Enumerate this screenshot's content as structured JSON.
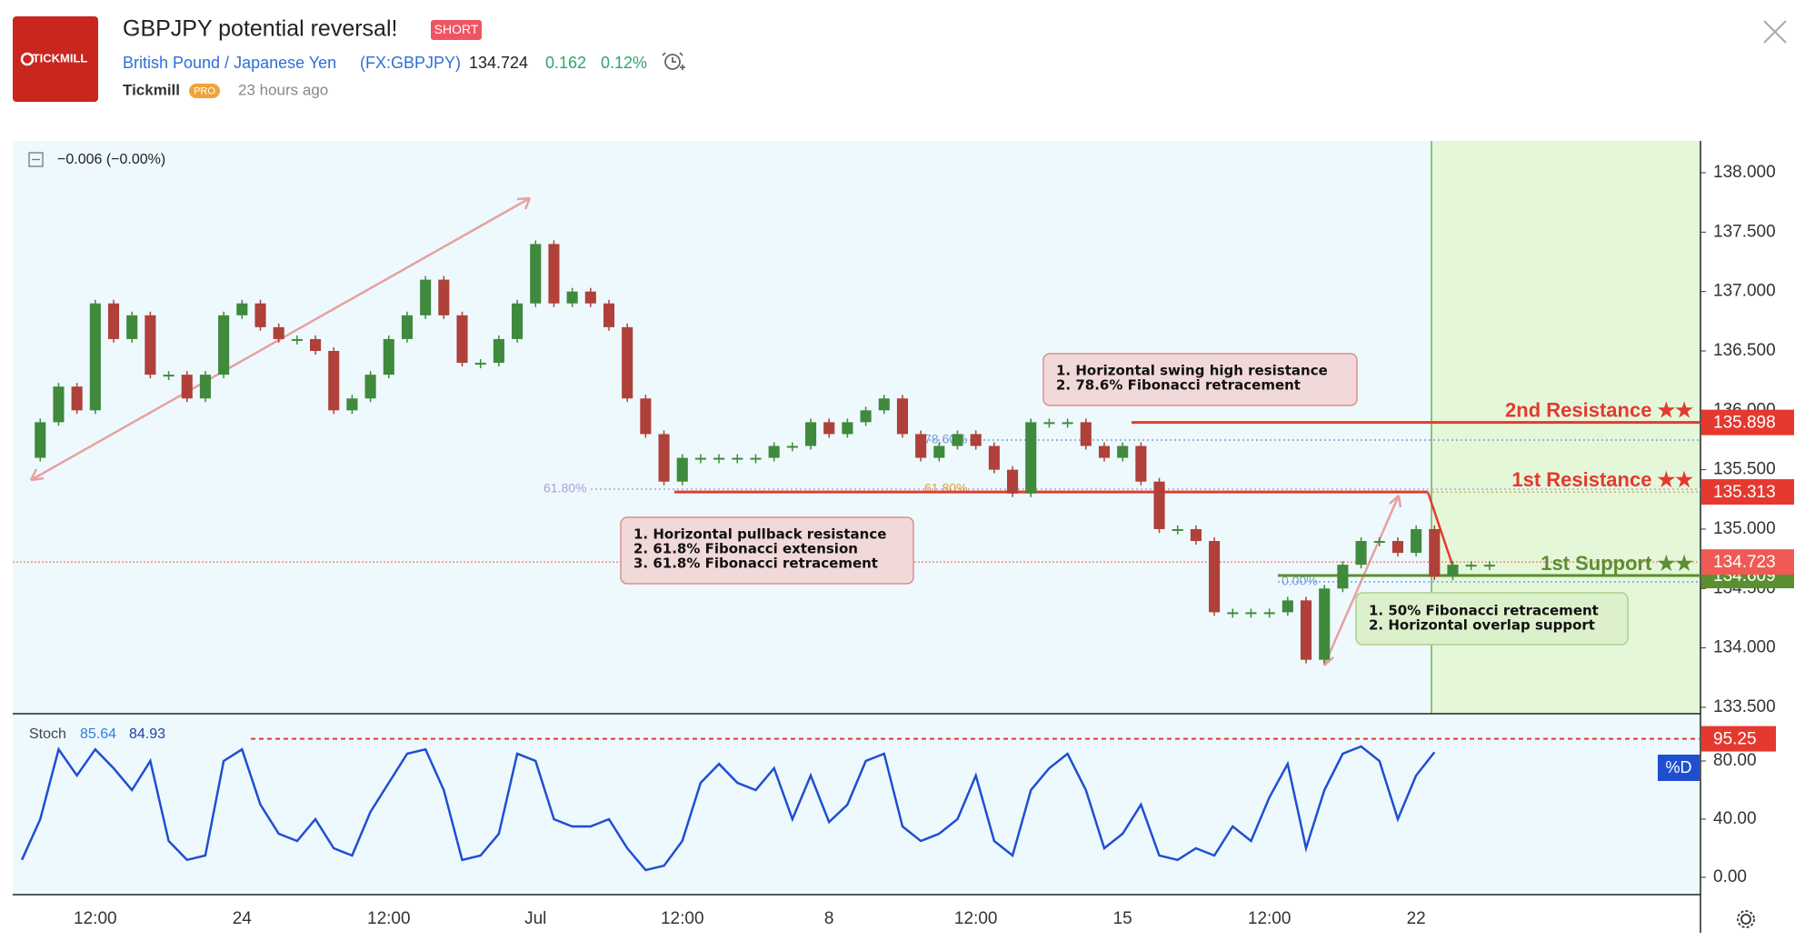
{
  "header": {
    "logo": "TICKMILL",
    "title": "GBPJPY potential reversal!",
    "badge": "SHORT",
    "symbol_name": "British Pound / Japanese Yen",
    "symbol_code": "(FX:GBPJPY)",
    "price": "134.724",
    "change": "0.162",
    "change_pct": "0.12%",
    "author": "Tickmill",
    "author_badge": "PRO",
    "time": "23 hours ago"
  },
  "chart_data": [
    {
      "type": "candlestick",
      "legend": "−0.006 (−0.00%)",
      "colors": {
        "up": "#3f8a3c",
        "down": "#b0403a"
      },
      "values": [
        135.6,
        135.9,
        136.2,
        136.0,
        136.9,
        136.6,
        136.8,
        136.3,
        136.3,
        136.1,
        136.3,
        136.8,
        136.9,
        136.7,
        136.6,
        136.6,
        136.5,
        136.0,
        136.1,
        136.3,
        136.6,
        136.8,
        137.1,
        136.8,
        136.4,
        136.4,
        136.6,
        136.9,
        137.4,
        136.9,
        137.0,
        136.9,
        136.7,
        136.1,
        135.8,
        135.4,
        135.6,
        135.6,
        135.6,
        135.6,
        135.6,
        135.7,
        135.7,
        135.9,
        135.8,
        135.9,
        136.0,
        136.1,
        135.8,
        135.6,
        135.7,
        135.8,
        135.7,
        135.5,
        135.3,
        135.9,
        135.9,
        135.9,
        135.7,
        135.6,
        135.7,
        135.4,
        135.0,
        135.0,
        134.9,
        134.3,
        134.3,
        134.3,
        134.3,
        134.4,
        133.9,
        134.5,
        134.7,
        134.9,
        134.9,
        134.8,
        135.0,
        134.6,
        134.7,
        134.7,
        134.7,
        null,
        null,
        null,
        null,
        null,
        null,
        null,
        null,
        null,
        null,
        null
      ],
      "ylim": [
        133.446,
        138.268
      ],
      "yticks": [
        {
          "value": 133.5,
          "label": "133.500"
        },
        {
          "value": 134,
          "label": "134.000"
        },
        {
          "value": 134.5,
          "label": "134.500"
        },
        {
          "value": 135,
          "label": "135.000"
        },
        {
          "value": 135.5,
          "label": "135.500"
        },
        {
          "value": 136,
          "label": "136.000"
        },
        {
          "value": 136.5,
          "label": "136.500"
        },
        {
          "value": 137,
          "label": "137.000"
        },
        {
          "value": 137.5,
          "label": "137.500"
        },
        {
          "value": 138,
          "label": "138.000"
        }
      ],
      "levels": [
        {
          "name": "2nd Resistance ★★",
          "value": 135.898,
          "color": "#e5392f"
        },
        {
          "name": "1st Resistance ★★",
          "value": 135.313,
          "color": "#e5392f"
        },
        {
          "name": "1st Support ★★",
          "value": 134.609,
          "color": "#5b8f2f"
        }
      ],
      "last_price": {
        "value": 134.723,
        "color": "#ef5a55"
      },
      "fib_labels": [
        "61.80%",
        "78.60%",
        "61.80%",
        "0.00%"
      ],
      "annotations": [
        {
          "lines": [
            "1. Horizontal swing high resistance",
            "2. 78.6% Fibonacci retracement"
          ]
        },
        {
          "lines": [
            "1. Horizontal pullback resistance",
            "2. 61.8% Fibonacci extension",
            "3. 61.8% Fibonacci retracement"
          ]
        },
        {
          "lines": [
            "1. 50% Fibonacci retracement",
            "2. Horizontal overlap support"
          ]
        }
      ]
    },
    {
      "type": "line",
      "name": "Stoch",
      "legend_values": [
        "85.64",
        "84.93"
      ],
      "badge": "%D",
      "color": "#1f4fd1",
      "categories": [
        null,
        null,
        null,
        null,
        "12:00",
        null,
        null,
        null,
        null,
        null,
        null,
        null,
        "24",
        null,
        null,
        null,
        null,
        null,
        null,
        null,
        "12:00",
        null,
        null,
        null,
        null,
        null,
        null,
        null,
        "Jul",
        null,
        null,
        null,
        null,
        null,
        null,
        null,
        "12:00",
        null,
        null,
        null,
        null,
        null,
        null,
        null,
        "8",
        null,
        null,
        null,
        null,
        null,
        null,
        null,
        "12:00",
        null,
        null,
        null,
        null,
        null,
        null,
        null,
        "15",
        null,
        null,
        null,
        null,
        null,
        null,
        null,
        "12:00",
        null,
        null,
        null,
        null,
        null,
        null,
        null,
        "22",
        null,
        null,
        null,
        null,
        null,
        null,
        null,
        null,
        null,
        null,
        null,
        null,
        null,
        null,
        null
      ],
      "values": [
        12,
        40,
        88,
        70,
        88,
        75,
        60,
        80,
        25,
        12,
        15,
        80,
        88,
        50,
        30,
        25,
        40,
        20,
        15,
        45,
        65,
        85,
        88,
        60,
        12,
        15,
        30,
        85,
        80,
        40,
        35,
        35,
        40,
        20,
        5,
        8,
        25,
        65,
        78,
        65,
        60,
        75,
        40,
        70,
        38,
        50,
        80,
        85,
        35,
        25,
        30,
        40,
        70,
        25,
        15,
        60,
        75,
        85,
        60,
        20,
        30,
        50,
        15,
        12,
        20,
        15,
        35,
        25,
        55,
        78,
        20,
        60,
        85,
        90,
        80,
        40,
        70,
        86,
        null,
        null,
        null,
        null,
        null,
        null,
        null,
        null,
        null,
        null,
        null,
        null,
        null,
        null
      ],
      "ylim": [
        -11.9,
        112.5
      ],
      "yticks": [
        {
          "value": 0,
          "label": "0.00"
        },
        {
          "value": 40,
          "label": "40.00"
        },
        {
          "value": 80,
          "label": "80.00"
        }
      ],
      "level": {
        "value": 95.25,
        "color": "#e5392f"
      }
    }
  ]
}
